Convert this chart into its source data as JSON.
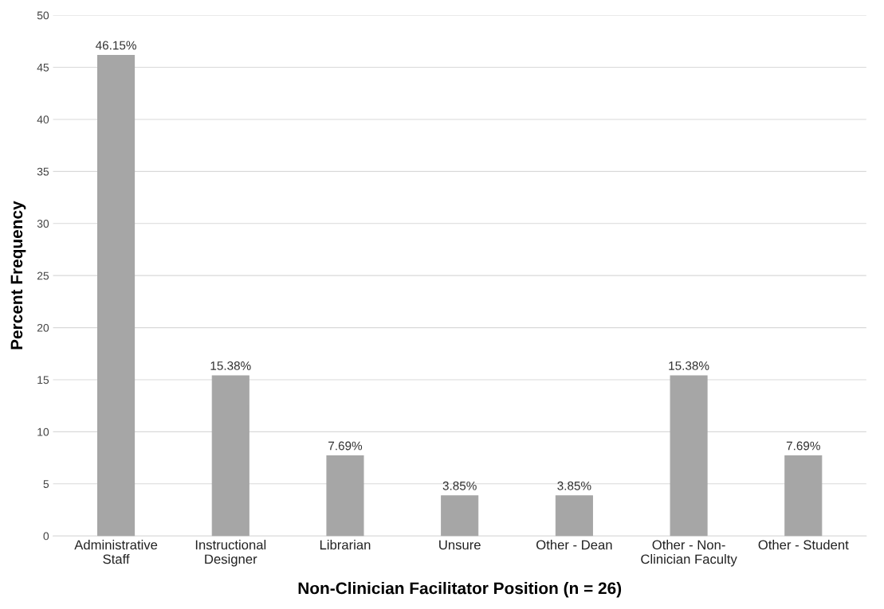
{
  "chart_data": {
    "type": "bar",
    "xlabel": "Non-Clinician Facilitator Position (n = 26)",
    "ylabel": "Percent Frequency",
    "categories": [
      "Administrative\nStaff",
      "Instructional\nDesigner",
      "Librarian",
      "Unsure",
      "Other - Dean",
      "Other - Non-\nClinician Faculty",
      "Other - Student"
    ],
    "values": [
      46.15,
      15.38,
      7.69,
      3.85,
      3.85,
      15.38,
      7.69
    ],
    "value_labels": [
      "46.15%",
      "15.38%",
      "7.69%",
      "3.85%",
      "3.85%",
      "15.38%",
      "7.69%"
    ],
    "color": "#a6a6a6",
    "ylim": [
      0,
      50
    ],
    "yticks": [
      0,
      5,
      10,
      15,
      20,
      25,
      30,
      35,
      40,
      45,
      50
    ],
    "grid": "y"
  }
}
